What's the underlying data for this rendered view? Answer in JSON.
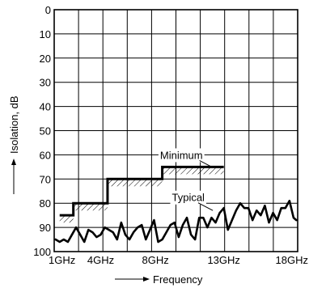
{
  "chart_data": {
    "type": "line",
    "title": "",
    "xlabel": "Frequency",
    "ylabel": "Isolation, dB",
    "x_ticks": [
      {
        "value": 1,
        "label": "1GHz"
      },
      {
        "value": 4,
        "label": "4GHz"
      },
      {
        "value": 8,
        "label": "8GHz"
      },
      {
        "value": 13,
        "label": "13GHz"
      },
      {
        "value": 18,
        "label": "18GHz"
      }
    ],
    "y_ticks": [
      0,
      10,
      20,
      30,
      40,
      50,
      60,
      70,
      80,
      90,
      100
    ],
    "xlim": [
      0.6,
      18.4
    ],
    "ylim": [
      0,
      100
    ],
    "y_inverted": true,
    "grid": true,
    "series": [
      {
        "name": "Minimum",
        "style": "step-hatched",
        "points": [
          {
            "x": 1,
            "y": 85
          },
          {
            "x": 2,
            "y": 85
          },
          {
            "x": 2,
            "y": 80
          },
          {
            "x": 4.5,
            "y": 80
          },
          {
            "x": 4.5,
            "y": 70
          },
          {
            "x": 8.5,
            "y": 70
          },
          {
            "x": 8.5,
            "y": 65
          },
          {
            "x": 13,
            "y": 65
          }
        ]
      },
      {
        "name": "Typical",
        "style": "line",
        "x": [
          0.7,
          1.0,
          1.3,
          1.6,
          1.9,
          2.2,
          2.5,
          2.8,
          3.1,
          3.4,
          3.7,
          4.0,
          4.3,
          4.6,
          4.9,
          5.2,
          5.5,
          5.8,
          6.1,
          6.4,
          6.7,
          7.0,
          7.3,
          7.6,
          7.9,
          8.2,
          8.5,
          8.8,
          9.1,
          9.4,
          9.7,
          10.0,
          10.3,
          10.6,
          10.9,
          11.2,
          11.5,
          11.8,
          12.1,
          12.4,
          12.7,
          13.0,
          13.3,
          13.6,
          13.9,
          14.2,
          14.5,
          14.8,
          15.1,
          15.4,
          15.7,
          16.0,
          16.3,
          16.6,
          16.9,
          17.2,
          17.5,
          17.8,
          18.1,
          18.3
        ],
        "y": [
          95,
          96,
          95,
          96,
          93,
          90,
          93,
          96,
          91,
          92,
          94,
          93,
          90,
          91,
          92,
          95,
          88,
          93,
          95,
          92,
          90,
          89,
          95,
          91,
          87,
          96,
          95,
          92,
          89,
          88,
          94,
          89,
          86,
          93,
          95,
          86,
          86,
          90,
          86,
          88,
          84,
          82,
          91,
          87,
          83,
          80,
          82,
          82,
          87,
          83,
          85,
          81,
          88,
          84,
          87,
          82,
          82,
          79,
          86,
          87
        ]
      }
    ],
    "annotations": [
      {
        "text": "Minimum",
        "x": 9.9,
        "y": 60
      },
      {
        "text": "Typical",
        "x": 10.4,
        "y": 77.5
      }
    ]
  }
}
